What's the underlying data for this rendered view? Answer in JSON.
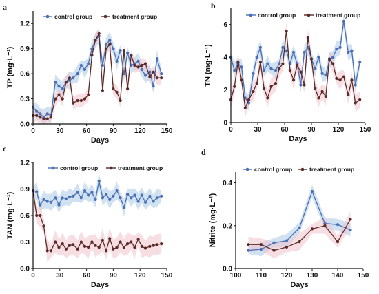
{
  "colors": {
    "control": "#4a6fb5",
    "treatment": "#5a2a26",
    "control_band": "#a9c9e6",
    "treatment_band": "#eec3cc"
  },
  "chart_data": [
    {
      "type": "line",
      "panel_label": "a",
      "xlabel": "Days",
      "ylabel": "TP (mg·L⁻¹)",
      "xlim": [
        0,
        150
      ],
      "ylim": [
        0,
        1.35
      ],
      "xticks": [
        0,
        30,
        60,
        90,
        120,
        150
      ],
      "yticks": [
        0,
        0.3,
        0.6,
        0.9,
        1.2
      ],
      "ytick_labels": [
        "0.0",
        "0.3",
        "0.6",
        "0.9",
        "1.2"
      ],
      "legend_position": "top-left",
      "series": [
        {
          "name": "control group",
          "x": [
            0,
            4,
            8,
            12,
            16,
            20,
            25,
            29,
            33,
            37,
            41,
            45,
            50,
            54,
            58,
            62,
            66,
            70,
            74,
            78,
            82,
            86,
            90,
            94,
            98,
            102,
            106,
            110,
            114,
            118,
            122,
            126,
            131,
            135,
            139,
            144
          ],
          "y": [
            0.2,
            0.15,
            0.12,
            0.08,
            0.12,
            0.1,
            0.5,
            0.45,
            0.42,
            0.5,
            0.52,
            0.55,
            0.6,
            0.7,
            0.65,
            0.72,
            0.9,
            1.0,
            1.05,
            0.7,
            0.95,
            1.0,
            0.9,
            0.75,
            0.88,
            0.6,
            0.85,
            0.7,
            0.72,
            0.75,
            0.65,
            0.58,
            0.62,
            0.45,
            0.78,
            0.6
          ],
          "band": 0.08
        },
        {
          "name": "treatment group",
          "x": [
            0,
            4,
            8,
            12,
            16,
            20,
            25,
            29,
            33,
            37,
            41,
            45,
            50,
            54,
            58,
            62,
            66,
            70,
            74,
            78,
            82,
            86,
            90,
            94,
            98,
            102,
            106,
            110,
            114,
            118,
            122,
            126,
            131,
            135,
            139,
            144
          ],
          "y": [
            0.1,
            0.1,
            0.08,
            0.06,
            0.06,
            0.08,
            0.3,
            0.35,
            0.3,
            0.5,
            0.55,
            0.25,
            0.28,
            0.28,
            0.3,
            0.35,
            0.82,
            1.0,
            1.08,
            0.4,
            0.9,
            0.95,
            0.42,
            0.38,
            0.28,
            0.88,
            0.42,
            0.82,
            0.7,
            0.68,
            0.7,
            0.72,
            0.56,
            0.62,
            0.55,
            0.55
          ],
          "band": 0.07
        }
      ]
    },
    {
      "type": "line",
      "panel_label": "b",
      "xlabel": "Days",
      "ylabel": "TN (mg·L⁻¹)",
      "xlim": [
        0,
        150
      ],
      "ylim": [
        0,
        7
      ],
      "xticks": [
        0,
        30,
        60,
        90,
        120,
        150
      ],
      "yticks": [
        0,
        2,
        4,
        6
      ],
      "ytick_labels": [
        "0",
        "2",
        "4",
        "6"
      ],
      "legend_position": "top",
      "series": [
        {
          "name": "control group",
          "x": [
            0,
            4,
            8,
            12,
            16,
            20,
            25,
            29,
            33,
            37,
            41,
            45,
            50,
            54,
            58,
            62,
            66,
            70,
            74,
            78,
            82,
            86,
            90,
            94,
            98,
            102,
            106,
            110,
            114,
            118,
            122,
            126,
            131,
            135,
            139,
            144
          ],
          "y": [
            4.0,
            3.2,
            3.6,
            3.4,
            1.5,
            1.2,
            3.0,
            4.0,
            4.6,
            3.2,
            3.6,
            3.3,
            3.2,
            3.6,
            4.6,
            4.4,
            3.6,
            4.3,
            3.6,
            2.3,
            4.3,
            4.6,
            3.9,
            3.3,
            4.0,
            3.0,
            2.9,
            3.8,
            4.0,
            4.5,
            4.6,
            6.2,
            4.3,
            4.4,
            2.3,
            3.7
          ],
          "band": 0.4
        },
        {
          "name": "treatment group",
          "x": [
            0,
            4,
            8,
            12,
            16,
            20,
            25,
            29,
            33,
            37,
            41,
            45,
            50,
            54,
            58,
            62,
            66,
            70,
            74,
            78,
            82,
            86,
            90,
            94,
            98,
            102,
            106,
            110,
            114,
            118,
            122,
            126,
            131,
            135,
            139,
            144
          ],
          "y": [
            1.4,
            2.2,
            3.7,
            2.6,
            0.9,
            1.4,
            1.9,
            2.4,
            3.7,
            2.1,
            1.5,
            2.2,
            2.4,
            3.3,
            3.6,
            5.6,
            3.2,
            2.6,
            3.5,
            3.1,
            2.3,
            5.2,
            3.9,
            2.1,
            1.5,
            1.9,
            1.6,
            3.9,
            3.6,
            2.7,
            2.6,
            2.8,
            1.7,
            2.6,
            1.2,
            1.4
          ],
          "band": 0.45
        }
      ]
    },
    {
      "type": "line",
      "panel_label": "c",
      "xlabel": "Days",
      "ylabel": "TAN (mg·L⁻¹)",
      "xlim": [
        0,
        150
      ],
      "ylim": [
        0,
        1.2
      ],
      "xticks": [
        0,
        30,
        60,
        90,
        120,
        150
      ],
      "yticks": [
        0,
        0.3,
        0.6,
        0.9,
        1.2
      ],
      "ytick_labels": [
        "0.0",
        "0.3",
        "0.6",
        "0.9",
        "1.2"
      ],
      "legend_position": "top",
      "series": [
        {
          "name": "control group",
          "x": [
            0,
            4,
            8,
            12,
            16,
            20,
            25,
            29,
            33,
            37,
            41,
            45,
            50,
            54,
            58,
            62,
            66,
            70,
            74,
            78,
            82,
            86,
            90,
            94,
            98,
            102,
            106,
            110,
            114,
            118,
            122,
            126,
            131,
            135,
            139,
            144
          ],
          "y": [
            0.88,
            0.87,
            0.72,
            0.78,
            0.76,
            0.75,
            0.8,
            0.72,
            0.8,
            0.79,
            0.81,
            0.82,
            0.86,
            0.8,
            0.88,
            0.83,
            0.86,
            0.78,
            0.99,
            0.8,
            0.84,
            0.78,
            0.82,
            0.88,
            0.8,
            0.69,
            0.84,
            0.8,
            0.83,
            0.76,
            0.83,
            0.75,
            0.82,
            0.76,
            0.8,
            0.82
          ],
          "band": 0.08
        },
        {
          "name": "treatment group",
          "x": [
            0,
            4,
            8,
            12,
            16,
            20,
            25,
            29,
            33,
            37,
            41,
            45,
            50,
            54,
            58,
            62,
            66,
            70,
            74,
            78,
            82,
            86,
            90,
            94,
            98,
            102,
            106,
            110,
            114,
            118,
            122,
            126,
            131,
            135,
            139,
            144
          ],
          "y": [
            0.88,
            0.6,
            0.6,
            0.48,
            0.2,
            0.2,
            0.3,
            0.24,
            0.28,
            0.22,
            0.26,
            0.27,
            0.22,
            0.3,
            0.25,
            0.24,
            0.3,
            0.26,
            0.24,
            0.32,
            0.2,
            0.34,
            0.22,
            0.24,
            0.3,
            0.24,
            0.28,
            0.3,
            0.24,
            0.33,
            0.25,
            0.23,
            0.25,
            0.26,
            0.27,
            0.28
          ],
          "band": 0.1
        }
      ]
    },
    {
      "type": "line",
      "panel_label": "d",
      "xlabel": "Days",
      "ylabel": "Nitrite (mg·L⁻¹)",
      "xlim": [
        100,
        150
      ],
      "ylim": [
        0,
        0.45
      ],
      "xticks": [
        100,
        110,
        120,
        130,
        140,
        150
      ],
      "yticks": [
        0,
        0.2,
        0.4
      ],
      "ytick_labels": [
        "0.0",
        "0.2",
        "0.4"
      ],
      "legend_position": "top-left",
      "series": [
        {
          "name": "control group",
          "x": [
            105,
            110,
            115,
            120,
            125,
            130,
            135,
            140,
            145
          ],
          "y": [
            0.085,
            0.09,
            0.12,
            0.13,
            0.19,
            0.36,
            0.21,
            0.205,
            0.18
          ],
          "band": 0.025
        },
        {
          "name": "treatment group",
          "x": [
            105,
            110,
            115,
            120,
            125,
            130,
            135,
            140,
            145
          ],
          "y": [
            0.112,
            0.112,
            0.085,
            0.1,
            0.125,
            0.185,
            0.2,
            0.125,
            0.23
          ],
          "band": 0.03
        }
      ]
    }
  ]
}
